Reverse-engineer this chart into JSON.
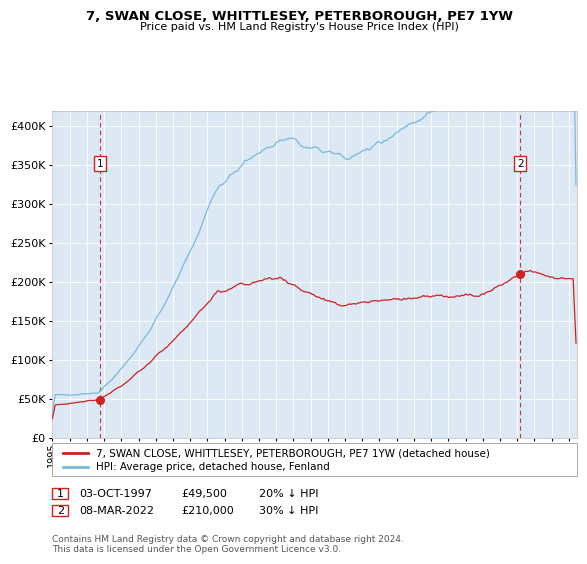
{
  "title": "7, SWAN CLOSE, WHITTLESEY, PETERBOROUGH, PE7 1YW",
  "subtitle": "Price paid vs. HM Land Registry's House Price Index (HPI)",
  "legend_line1": "7, SWAN CLOSE, WHITTLESEY, PETERBOROUGH, PE7 1YW (detached house)",
  "legend_line2": "HPI: Average price, detached house, Fenland",
  "annotation1_date": "03-OCT-1997",
  "annotation1_price": "£49,500",
  "annotation1_hpi": "20% ↓ HPI",
  "annotation2_date": "08-MAR-2022",
  "annotation2_price": "£210,000",
  "annotation2_hpi": "30% ↓ HPI",
  "footer": "Contains HM Land Registry data © Crown copyright and database right 2024.\nThis data is licensed under the Open Government Licence v3.0.",
  "sale1_year": 1997.75,
  "sale1_value": 49500,
  "sale2_year": 2022.18,
  "sale2_value": 210000,
  "hpi_color": "#7ab8d9",
  "price_color": "#cc2222",
  "dashed_line_color": "#cc3333",
  "plot_bg_color": "#dce9f5",
  "grid_color": "#ffffff",
  "ann_box_color": "#cc2222",
  "ylim_min": 0,
  "ylim_max": 420000,
  "xlim_min": 1995.0,
  "xlim_max": 2025.5,
  "yticks": [
    0,
    50000,
    100000,
    150000,
    200000,
    250000,
    300000,
    350000,
    400000
  ]
}
